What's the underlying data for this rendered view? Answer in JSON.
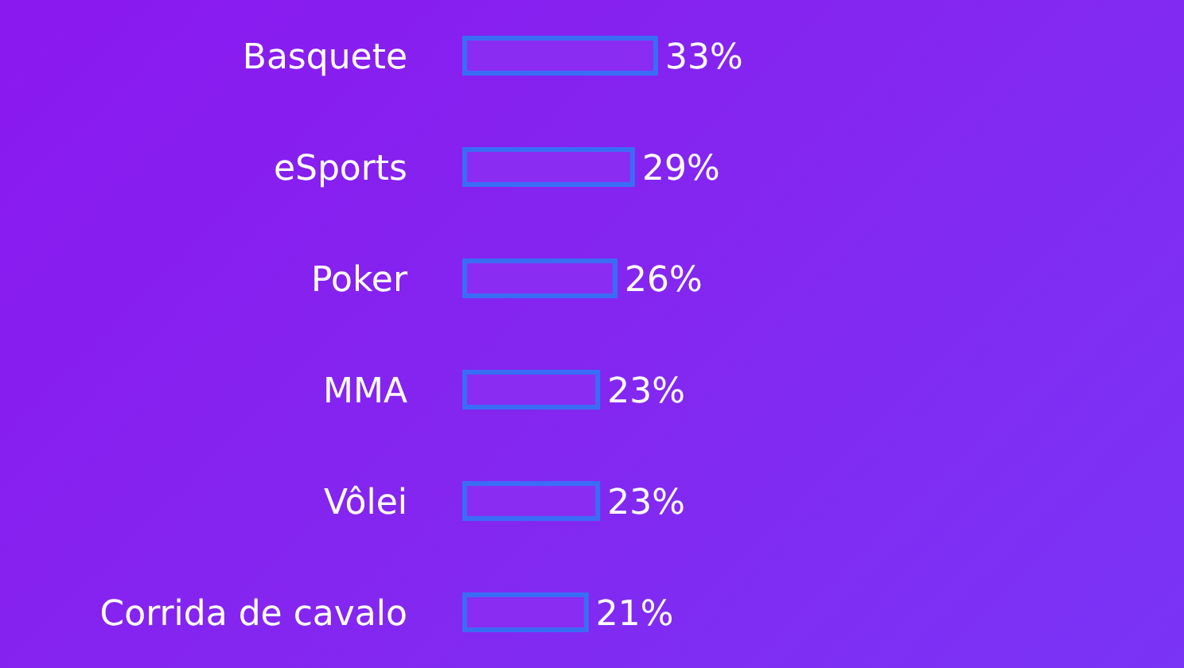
{
  "chart_data": {
    "type": "bar",
    "orientation": "horizontal",
    "categories": [
      "Basquete",
      "eSports",
      "Poker",
      "MMA",
      "Vôlei",
      "Corrida de cavalo"
    ],
    "values": [
      33,
      29,
      26,
      23,
      23,
      21
    ],
    "value_labels": [
      "33%",
      "29%",
      "26%",
      "23%",
      "23%",
      "21%"
    ],
    "color": "#3a6df5"
  }
}
